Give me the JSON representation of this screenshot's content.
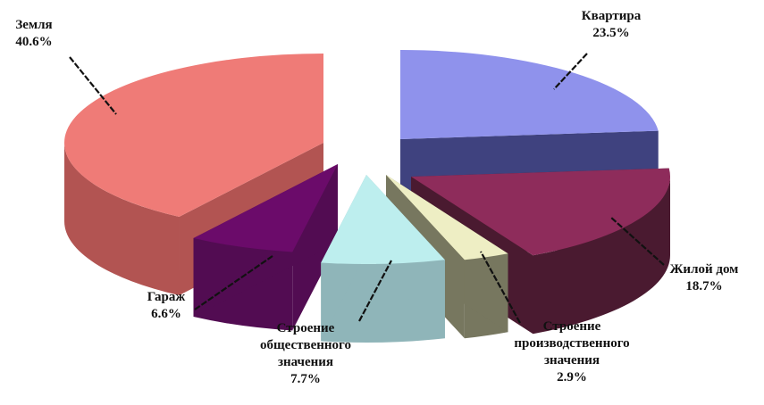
{
  "chart_data": {
    "type": "pie",
    "title": "",
    "exploded": true,
    "style": "3d",
    "slices": [
      {
        "name": "Квартира",
        "label_lines": [
          "Квартира",
          "23.5%"
        ],
        "value": 23.5,
        "color": "#8f92ec",
        "side_color": "#3f427f"
      },
      {
        "name": "Жилой дом",
        "label_lines": [
          "Жилой дом",
          "18.7%"
        ],
        "value": 18.7,
        "color": "#8e2c5b",
        "side_color": "#4a1a30"
      },
      {
        "name": "Строение производственного значения",
        "label_lines": [
          "Строение",
          "производственного",
          "значения",
          "2.9%"
        ],
        "value": 2.9,
        "color": "#eeeec4",
        "side_color": "#77775f"
      },
      {
        "name": "Строение общественного значения",
        "label_lines": [
          "Строение",
          "общественного",
          "значения",
          "7.7%"
        ],
        "value": 7.7,
        "color": "#bdeeee",
        "side_color": "#8fb5b9"
      },
      {
        "name": "Гараж",
        "label_lines": [
          "Гараж",
          "6.6%"
        ],
        "value": 6.6,
        "color": "#6b0b6a",
        "side_color": "#520c52"
      },
      {
        "name": "Земля",
        "label_lines": [
          "Земля",
          "40.6%"
        ],
        "value": 40.6,
        "color": "#ef7b77",
        "side_color": "#b25452"
      }
    ]
  }
}
